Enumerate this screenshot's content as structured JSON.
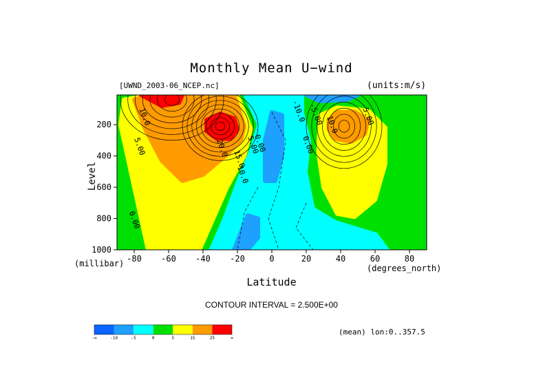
{
  "chart_data": {
    "type": "heatmap",
    "title": "Monthly Mean U−wind",
    "dataset_label": "[UWND_2003-06_NCEP.nc]",
    "units_label": "(units:m/s)",
    "xlabel": "Latitude",
    "x_units": "(degrees_north)",
    "ylabel": "Level",
    "y_units": "(millibar)",
    "xlim": [
      -90,
      90
    ],
    "ylim": [
      1000,
      10
    ],
    "x_ticks": [
      -80,
      -60,
      -40,
      -20,
      0,
      20,
      40,
      60,
      80
    ],
    "y_ticks": [
      200,
      400,
      600,
      800,
      1000
    ],
    "contour_interval_text": "CONTOUR INTERVAL = 2.500E+00",
    "region_text": "(mean) lon:0..357.5",
    "colorbar": {
      "colors": [
        "#0a64ff",
        "#1ea0ff",
        "#00ffff",
        "#00e000",
        "#ffff00",
        "#ff9b00",
        "#ff0000"
      ],
      "labels": [
        "-∞",
        "-10",
        "-5",
        "0",
        "5",
        "15",
        "25",
        "∞"
      ]
    },
    "contour_labels": [
      {
        "text": "10.0",
        "lat": -77,
        "p": 100
      },
      {
        "text": "5.00",
        "lat": -80,
        "p": 290
      },
      {
        "text": "0.00",
        "lat": -83,
        "p": 760
      },
      {
        "text": "20.0",
        "lat": -32,
        "p": 300
      },
      {
        "text": "15.0",
        "lat": -22,
        "p": 370
      },
      {
        "text": "10.0",
        "lat": -20,
        "p": 470
      },
      {
        "text": "5.00",
        "lat": -14,
        "p": 280
      },
      {
        "text": "0.00",
        "lat": -10,
        "p": 270
      },
      {
        "text": "-10.0",
        "lat": 12,
        "p": 50
      },
      {
        "text": "-5.00",
        "lat": 22,
        "p": 70
      },
      {
        "text": "0.00",
        "lat": 18,
        "p": 280
      },
      {
        "text": "10.0",
        "lat": 32,
        "p": 150
      },
      {
        "text": "-5.00",
        "lat": 52,
        "p": 70
      }
    ],
    "jets": [
      {
        "name_hint": "SH polar-night jet core (>25 m/s)",
        "lat": -62,
        "p": 10,
        "max": 40
      },
      {
        "name_hint": "SH subtropical jet core",
        "lat": -30,
        "p": 200,
        "max": 35
      },
      {
        "name_hint": "NH subtropical jet core",
        "lat": 42,
        "p": 200,
        "max": 22
      }
    ]
  }
}
